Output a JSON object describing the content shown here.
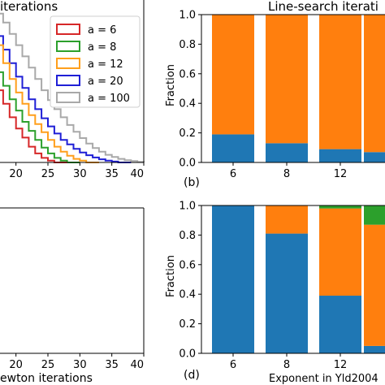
{
  "chart_data": [
    {
      "panel": "top-left",
      "type": "line",
      "title": "iterations",
      "xlabel": "",
      "ylabel": "",
      "xlim": [
        17.5,
        40
      ],
      "xticks": [
        "20",
        "25",
        "30",
        "35",
        "40"
      ],
      "legend": {
        "placement": "top-right",
        "entries": [
          "a = 6",
          "a = 8",
          "a = 12",
          "a = 20",
          "a = 100"
        ]
      },
      "series": [
        {
          "name": "a = 6",
          "color": "#d62728",
          "x": [
            17,
            18,
            19,
            20,
            21,
            22,
            23,
            24,
            25,
            26,
            27
          ],
          "y": [
            0.16,
            0.13,
            0.1,
            0.075,
            0.055,
            0.035,
            0.02,
            0.01,
            0.004,
            0.0,
            0.0
          ]
        },
        {
          "name": "a = 8",
          "color": "#2ca02c",
          "x": [
            17,
            18,
            19,
            20,
            21,
            22,
            23,
            24,
            25,
            26,
            27,
            28,
            29
          ],
          "y": [
            0.2,
            0.17,
            0.14,
            0.115,
            0.09,
            0.07,
            0.05,
            0.033,
            0.02,
            0.01,
            0.004,
            0.0,
            0.0
          ]
        },
        {
          "name": "a = 12",
          "color": "#ff9f1c",
          "x": [
            17,
            18,
            19,
            20,
            21,
            22,
            23,
            24,
            25,
            26,
            27,
            28,
            29,
            30,
            31,
            32
          ],
          "y": [
            0.26,
            0.22,
            0.185,
            0.155,
            0.13,
            0.105,
            0.085,
            0.067,
            0.05,
            0.035,
            0.024,
            0.015,
            0.008,
            0.004,
            0.0,
            0.0
          ]
        },
        {
          "name": "a = 20",
          "color": "#1f1fd6",
          "x": [
            17,
            18,
            19,
            20,
            21,
            22,
            23,
            24,
            25,
            26,
            27,
            28,
            29,
            30,
            31,
            32,
            33,
            34,
            35,
            36,
            37
          ],
          "y": [
            0.28,
            0.25,
            0.22,
            0.19,
            0.165,
            0.14,
            0.118,
            0.098,
            0.08,
            0.064,
            0.05,
            0.04,
            0.03,
            0.022,
            0.016,
            0.011,
            0.007,
            0.004,
            0.002,
            0.0,
            0.0
          ]
        },
        {
          "name": "a = 100",
          "color": "#a9a9a9",
          "x": [
            17,
            18,
            19,
            20,
            21,
            22,
            23,
            24,
            25,
            26,
            27,
            28,
            29,
            30,
            31,
            32,
            33,
            34,
            35,
            36,
            37,
            38,
            39,
            40
          ],
          "y": [
            0.33,
            0.31,
            0.285,
            0.26,
            0.235,
            0.21,
            0.185,
            0.16,
            0.138,
            0.118,
            0.1,
            0.083,
            0.068,
            0.054,
            0.042,
            0.032,
            0.024,
            0.017,
            0.012,
            0.008,
            0.005,
            0.003,
            0.001,
            0.0
          ]
        }
      ]
    },
    {
      "panel": "top-right",
      "type": "bar",
      "stacked": true,
      "title": "Line-search iterati",
      "ylabel": "Fraction",
      "ylim": [
        0,
        1
      ],
      "yticks": [
        "0.0",
        "0.2",
        "0.4",
        "0.6",
        "0.8",
        "1.0"
      ],
      "categories": [
        "6",
        "8",
        "12",
        ""
      ],
      "series": [
        {
          "color": "#1f77b4",
          "values": [
            0.19,
            0.13,
            0.09,
            0.07
          ]
        },
        {
          "color": "#ff7f0e",
          "values": [
            0.81,
            0.87,
            0.91,
            0.93
          ]
        },
        {
          "color": "#2ca02c",
          "values": [
            0.0,
            0.0,
            0.0,
            0.0
          ]
        }
      ],
      "panel_label": "(b)"
    },
    {
      "panel": "bottom-left",
      "type": "line",
      "title": "",
      "xlabel": "ewton iterations",
      "xlim": [
        17.5,
        40
      ],
      "xticks": [
        "20",
        "25",
        "30",
        "35",
        "40"
      ],
      "series": []
    },
    {
      "panel": "bottom-right",
      "type": "bar",
      "stacked": true,
      "title": "",
      "xlabel": "Exponent in Yld2004",
      "ylabel": "Fraction",
      "ylim": [
        0,
        1
      ],
      "yticks": [
        "0.0",
        "0.2",
        "0.4",
        "0.6",
        "0.8",
        "1.0"
      ],
      "categories": [
        "6",
        "8",
        "12",
        ""
      ],
      "series": [
        {
          "color": "#1f77b4",
          "values": [
            1.0,
            0.81,
            0.39,
            0.05
          ]
        },
        {
          "color": "#ff7f0e",
          "values": [
            0.0,
            0.19,
            0.59,
            0.82
          ]
        },
        {
          "color": "#2ca02c",
          "values": [
            0.0,
            0.0,
            0.02,
            0.13
          ]
        }
      ],
      "panel_label": "(d)"
    }
  ]
}
